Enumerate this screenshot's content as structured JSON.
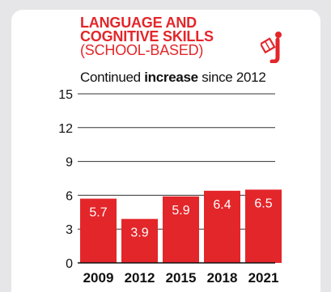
{
  "header": {
    "title_line1": "LANGUAGE AND",
    "title_line2": "COGNITIVE SKILLS",
    "title_line3": "(SCHOOL-BASED)",
    "subtitle_pre": "Continued ",
    "subtitle_bold": "increase",
    "subtitle_post": " since 2012",
    "icon": "reading-person-icon"
  },
  "colors": {
    "bar": "#e3262a",
    "title": "#e3262a",
    "axis": "#333333",
    "label": "#ffffff"
  },
  "chart_data": {
    "type": "bar",
    "title": "LANGUAGE AND COGNITIVE SKILLS (SCHOOL-BASED)",
    "subtitle": "Continued increase since 2012",
    "categories": [
      "2009",
      "2012",
      "2015",
      "2018",
      "2021"
    ],
    "values": [
      5.7,
      3.9,
      5.9,
      6.4,
      6.5
    ],
    "value_labels": [
      "5.7",
      "3.9",
      "5.9",
      "6.4",
      "6.5"
    ],
    "yticks": [
      "0",
      "3",
      "6",
      "9",
      "12",
      "15"
    ],
    "ylim": [
      0,
      15
    ],
    "grid": true,
    "legend": "none"
  }
}
